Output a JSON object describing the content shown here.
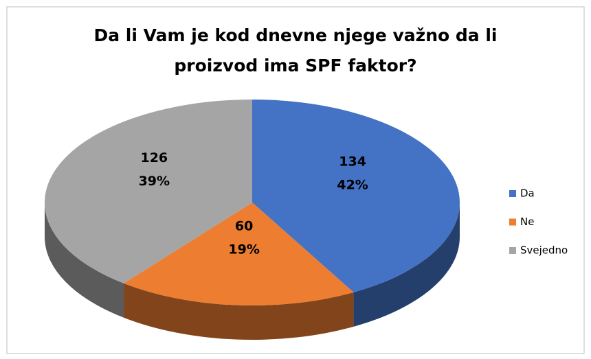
{
  "chart_data": {
    "type": "pie3d",
    "title": [
      "Da li Vam je kod dnevne njege važno da li",
      "proizvod ima SPF faktor?"
    ],
    "categories": [
      "Da",
      "Ne",
      "Svejedno"
    ],
    "values": [
      134,
      60,
      126
    ],
    "percent_labels": [
      "42%",
      "19%",
      "39%"
    ],
    "colors": [
      "#4472c4",
      "#ed7d31",
      "#a5a5a5"
    ],
    "legend": "right"
  }
}
